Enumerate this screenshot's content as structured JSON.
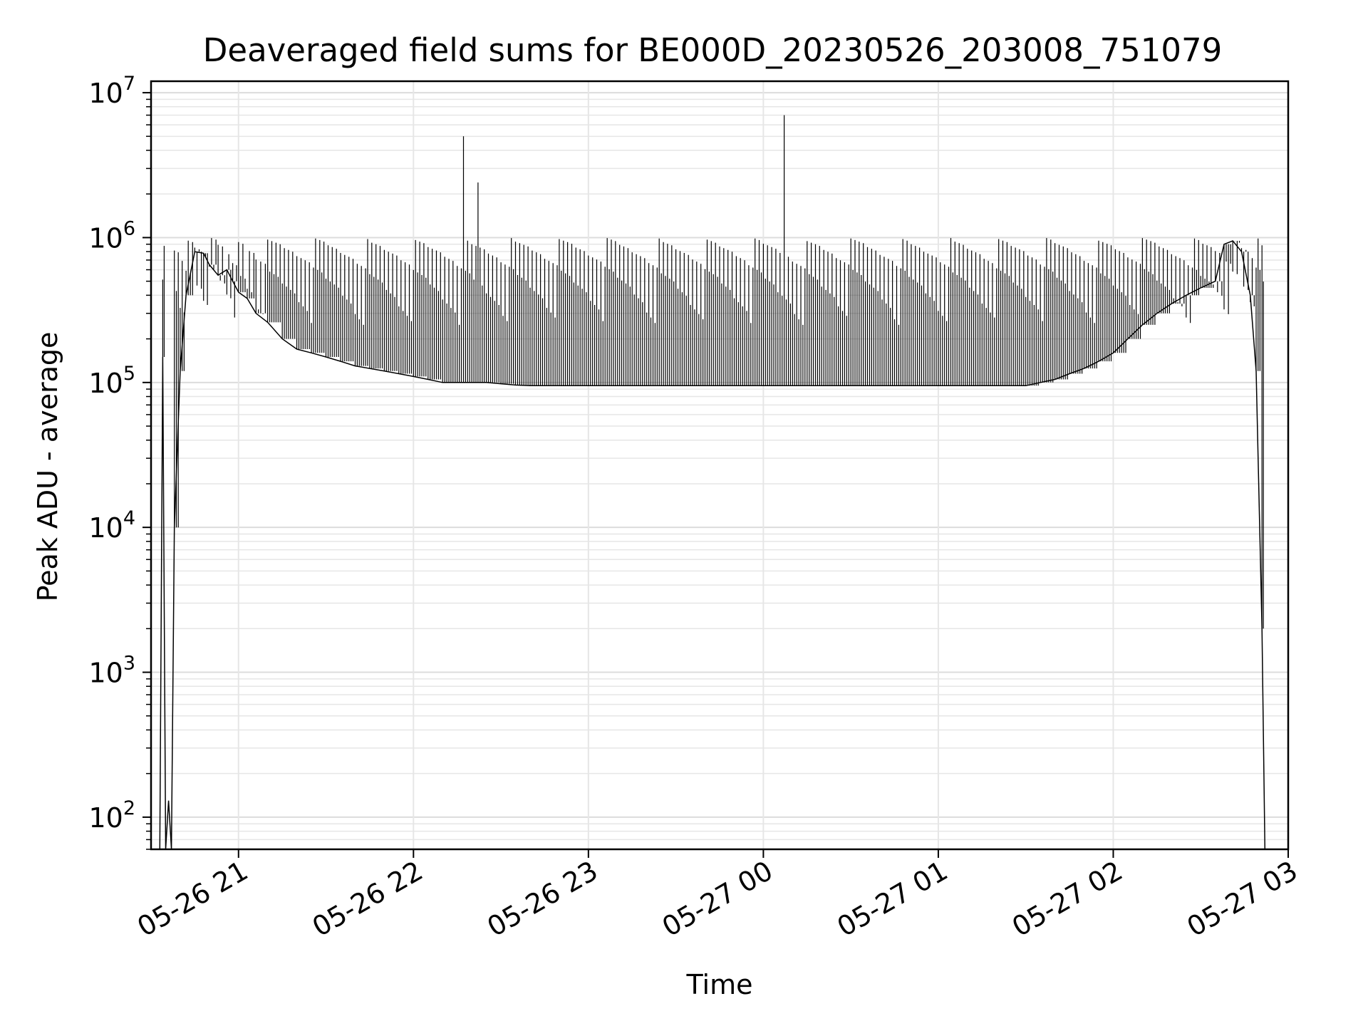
{
  "chart_data": {
    "type": "line",
    "title": "Deaveraged field sums for BE000D_20230526_203008_751079",
    "xlabel": "Time",
    "ylabel": "Peak ADU - average",
    "xscale": "time",
    "yscale": "log",
    "xlim": [
      "2023-05-26 20:30",
      "2023-05-27 03:00"
    ],
    "ylim": [
      60,
      12000000
    ],
    "grid": true,
    "line_color": "#000000",
    "x_ticks": [
      "2023-05-26 21:00",
      "2023-05-26 22:00",
      "2023-05-26 23:00",
      "2023-05-27 00:00",
      "2023-05-27 01:00",
      "2023-05-27 02:00",
      "2023-05-27 03:00"
    ],
    "x_tick_labels": [
      "05-26 21",
      "05-26 22",
      "05-26 23",
      "05-27 00",
      "05-27 01",
      "05-27 02",
      "05-27 03"
    ],
    "y_ticks": [
      {
        "value": 100,
        "base": "10",
        "exp": "2"
      },
      {
        "value": 1000,
        "base": "10",
        "exp": "3"
      },
      {
        "value": 10000,
        "base": "10",
        "exp": "4"
      },
      {
        "value": 100000,
        "base": "10",
        "exp": "5"
      },
      {
        "value": 1000000,
        "base": "10",
        "exp": "6"
      },
      {
        "value": 10000000,
        "base": "10",
        "exp": "7"
      }
    ],
    "series": [
      {
        "x": [
          "2023-05-26 20:33",
          "2023-05-26 20:34",
          "2023-05-26 20:35",
          "2023-05-26 20:36",
          "2023-05-26 20:37",
          "2023-05-26 20:38",
          "2023-05-26 20:40",
          "2023-05-26 20:42",
          "2023-05-26 20:45",
          "2023-05-26 20:48",
          "2023-05-26 20:50",
          "2023-05-26 20:53",
          "2023-05-26 20:56",
          "2023-05-26 20:58",
          "2023-05-26 21:00",
          "2023-05-26 21:03",
          "2023-05-26 21:06",
          "2023-05-26 21:10",
          "2023-05-26 21:15",
          "2023-05-26 21:20",
          "2023-05-26 21:25",
          "2023-05-26 21:30",
          "2023-05-26 21:35",
          "2023-05-26 21:40",
          "2023-05-26 21:45",
          "2023-05-26 21:50",
          "2023-05-26 21:55",
          "2023-05-26 22:00",
          "2023-05-26 22:05",
          "2023-05-26 22:10",
          "2023-05-26 22:15",
          "2023-05-26 22:20",
          "2023-05-26 22:25",
          "2023-05-26 22:30",
          "2023-05-26 22:35",
          "2023-05-26 22:40",
          "2023-05-26 22:45",
          "2023-05-26 22:50",
          "2023-05-26 22:55",
          "2023-05-26 23:00",
          "2023-05-26 23:05",
          "2023-05-26 23:10",
          "2023-05-26 23:15",
          "2023-05-26 23:20",
          "2023-05-26 23:25",
          "2023-05-26 23:30",
          "2023-05-26 23:35",
          "2023-05-26 23:40",
          "2023-05-26 23:45",
          "2023-05-26 23:50",
          "2023-05-26 23:55",
          "2023-05-27 00:00",
          "2023-05-27 00:05",
          "2023-05-27 00:10",
          "2023-05-27 00:15",
          "2023-05-27 00:20",
          "2023-05-27 00:25",
          "2023-05-27 00:30",
          "2023-05-27 00:35",
          "2023-05-27 00:40",
          "2023-05-27 00:45",
          "2023-05-27 00:50",
          "2023-05-27 00:55",
          "2023-05-27 01:00",
          "2023-05-27 01:05",
          "2023-05-27 01:10",
          "2023-05-27 01:15",
          "2023-05-27 01:20",
          "2023-05-27 01:25",
          "2023-05-27 01:30",
          "2023-05-27 01:35",
          "2023-05-27 01:40",
          "2023-05-27 01:45",
          "2023-05-27 01:50",
          "2023-05-27 01:55",
          "2023-05-27 02:00",
          "2023-05-27 02:05",
          "2023-05-27 02:10",
          "2023-05-27 02:15",
          "2023-05-27 02:20",
          "2023-05-27 02:25",
          "2023-05-27 02:30",
          "2023-05-27 02:35",
          "2023-05-27 02:38",
          "2023-05-27 02:41",
          "2023-05-27 02:44",
          "2023-05-27 02:47",
          "2023-05-27 02:49",
          "2023-05-27 02:51",
          "2023-05-27 02:52"
        ],
        "y": [
          60,
          150000,
          60,
          130,
          60,
          10000,
          120000,
          400000,
          800000,
          780000,
          650000,
          550000,
          600000,
          500000,
          420000,
          380000,
          300000,
          260000,
          200000,
          170000,
          160000,
          150000,
          140000,
          130000,
          125000,
          120000,
          115000,
          110000,
          105000,
          100000,
          100000,
          100000,
          100000,
          98000,
          96000,
          95000,
          95000,
          95000,
          95000,
          95000,
          95000,
          95000,
          95000,
          95000,
          95000,
          95000,
          95000,
          95000,
          95000,
          95000,
          95000,
          95000,
          95000,
          95000,
          95000,
          95000,
          95000,
          95000,
          95000,
          95000,
          95000,
          95000,
          95000,
          95000,
          95000,
          95000,
          95000,
          95000,
          95000,
          95000,
          100000,
          105000,
          115000,
          125000,
          140000,
          160000,
          200000,
          250000,
          300000,
          350000,
          400000,
          450000,
          500000,
          900000,
          950000,
          800000,
          400000,
          120000,
          2000,
          60
        ],
        "peaks": [
          1000000,
          1000000,
          1000000,
          1000000,
          1000000,
          1000000,
          1000000,
          1000000,
          1000000,
          1000000,
          1000000,
          1000000,
          1000000,
          1000000,
          1500000,
          1000000,
          1000000,
          1000000,
          1000000,
          1000000,
          1000000,
          1000000,
          1400000,
          1000000,
          1000000,
          1000000,
          1000000,
          1000000,
          1000000,
          1000000,
          5000000,
          2400000,
          1000000,
          1700000,
          1000000,
          1000000,
          1000000,
          1000000,
          1000000,
          1000000,
          1000000,
          1000000,
          1000000,
          1000000,
          1000000,
          1000000,
          1000000,
          1000000,
          1000000,
          1000000,
          1000000,
          1000000,
          7000000,
          1100000,
          1000000,
          1000000,
          1000000,
          1000000,
          1000000,
          1000000,
          1000000,
          1000000,
          1000000,
          1000000,
          1000000,
          1000000,
          1000000,
          1000000,
          1000000,
          1000000,
          1000000,
          1000000,
          1000000,
          1000000,
          1000000,
          1000000,
          1000000,
          1000000,
          1000000,
          1000000,
          1000000,
          1000000,
          1000000,
          1000000,
          1000000,
          1000000,
          1000000,
          1000000,
          1000000,
          1000000
        ]
      }
    ]
  }
}
